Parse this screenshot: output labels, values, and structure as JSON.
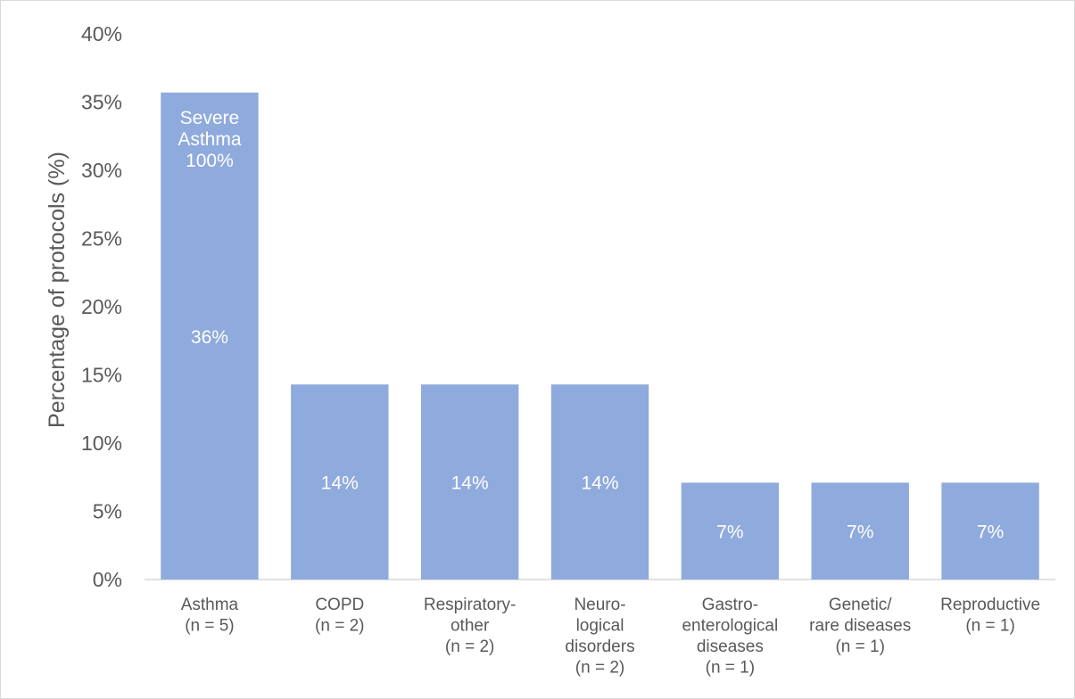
{
  "chart_data": {
    "type": "bar",
    "ylabel": "Percentage of protocols (%)",
    "ylim": [
      0,
      40
    ],
    "yticks": [
      "0%",
      "5%",
      "10%",
      "15%",
      "20%",
      "25%",
      "30%",
      "35%",
      "40%"
    ],
    "grid": false,
    "bar_color": "#8faadc",
    "categories": [
      [
        "Asthma",
        "(n = 5)"
      ],
      [
        "COPD",
        "(n = 2)"
      ],
      [
        "Respiratory-",
        "other",
        "(n = 2)"
      ],
      [
        "Neuro-",
        "logical",
        "disorders",
        "(n = 2)"
      ],
      [
        "Gastro-",
        "enterological",
        "diseases",
        "(n = 1)"
      ],
      [
        "Genetic/",
        "rare diseases",
        "(n = 1)"
      ],
      [
        "Reproductive",
        "(n = 1)"
      ]
    ],
    "values": [
      35.7,
      14.3,
      14.3,
      14.3,
      7.1,
      7.1,
      7.1
    ],
    "data_labels": [
      "36%",
      "14%",
      "14%",
      "14%",
      "7%",
      "7%",
      "7%"
    ],
    "annotations": [
      {
        "category_index": 0,
        "lines": [
          "Severe",
          "Asthma",
          "100%"
        ]
      }
    ]
  }
}
